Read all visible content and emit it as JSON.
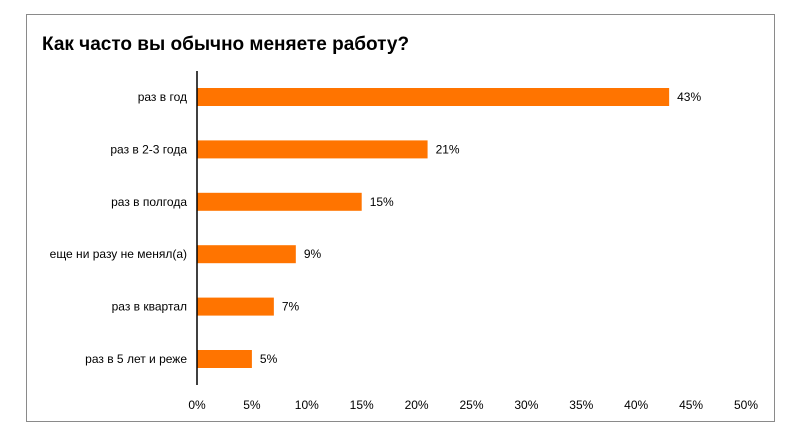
{
  "chart_data": {
    "type": "bar",
    "orientation": "horizontal",
    "title": "Как часто вы обычно меняете работу?",
    "categories": [
      "раз в год",
      "раз в 2-3 года",
      "раз в полгода",
      "еще ни разу не менял(а)",
      "раз в квартал",
      "раз в 5 лет и реже"
    ],
    "values": [
      43,
      21,
      15,
      9,
      7,
      5
    ],
    "data_labels": [
      "43%",
      "21%",
      "15%",
      "9%",
      "7%",
      "5%"
    ],
    "x_ticks": [
      "0%",
      "5%",
      "10%",
      "15%",
      "20%",
      "25%",
      "30%",
      "35%",
      "40%",
      "45%",
      "50%"
    ],
    "xlim": [
      0,
      50
    ],
    "bar_color": "#ff7400",
    "grid": false,
    "legend": "none"
  }
}
